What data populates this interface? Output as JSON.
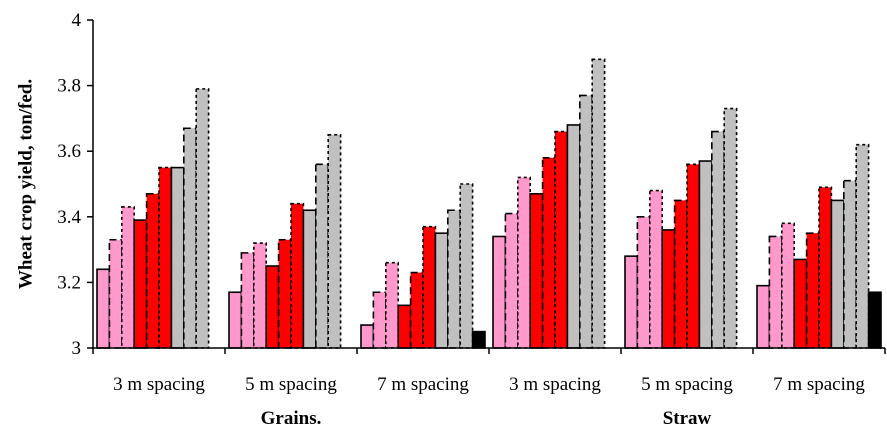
{
  "chart_data": {
    "type": "bar",
    "title": "",
    "xlabel": "",
    "ylabel": "Wheat crop yield, ton/fed.",
    "ylim": [
      3,
      4
    ],
    "yticks": [
      "3",
      "3.2",
      "3.4",
      "3.6",
      "3.8",
      "4"
    ],
    "grid": false,
    "legend": "none",
    "categories": [
      "3 m spacing",
      "5 m spacing",
      "7 m spacing",
      "3 m spacing",
      "5 m spacing",
      "7 m spacing"
    ],
    "group_labels": [
      "Grains.",
      "Straw"
    ],
    "series": [
      {
        "color": "#ff99cc",
        "style": "solid",
        "values": [
          3.24,
          3.17,
          3.07,
          3.34,
          3.28,
          3.19
        ]
      },
      {
        "color": "#ff99cc",
        "style": "dashed",
        "values": [
          3.33,
          3.29,
          3.17,
          3.41,
          3.4,
          3.34
        ]
      },
      {
        "color": "#ff99cc",
        "style": "dotted",
        "values": [
          3.43,
          3.32,
          3.26,
          3.52,
          3.48,
          3.38
        ]
      },
      {
        "color": "#ff0000",
        "style": "solid",
        "values": [
          3.39,
          3.25,
          3.13,
          3.47,
          3.36,
          3.27
        ]
      },
      {
        "color": "#ff0000",
        "style": "dashed",
        "values": [
          3.47,
          3.33,
          3.23,
          3.58,
          3.45,
          3.35
        ]
      },
      {
        "color": "#ff0000",
        "style": "dotted",
        "values": [
          3.55,
          3.44,
          3.37,
          3.66,
          3.56,
          3.49
        ]
      },
      {
        "color": "#c0c0c0",
        "style": "solid",
        "values": [
          3.55,
          3.42,
          3.35,
          3.68,
          3.57,
          3.45
        ]
      },
      {
        "color": "#c0c0c0",
        "style": "dashed",
        "values": [
          3.67,
          3.56,
          3.42,
          3.77,
          3.66,
          3.51
        ]
      },
      {
        "color": "#c0c0c0",
        "style": "dotted",
        "values": [
          3.79,
          3.65,
          3.5,
          3.88,
          3.73,
          3.62
        ]
      },
      {
        "color": "#000000",
        "style": "solid",
        "values": [
          null,
          null,
          3.05,
          null,
          null,
          3.17
        ]
      }
    ]
  }
}
